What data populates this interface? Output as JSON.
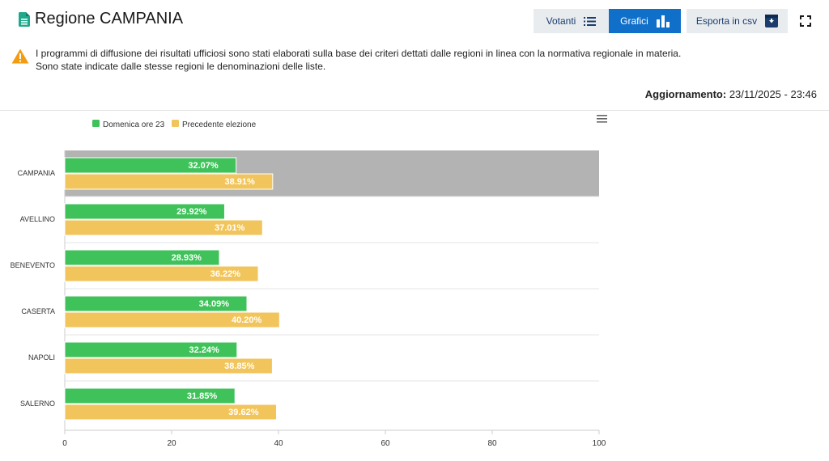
{
  "header": {
    "title": "Regione CAMPANIA",
    "buttons": {
      "votanti": "Votanti",
      "grafici": "Grafici",
      "csv": "Esporta in csv"
    },
    "notice_lines": [
      "I programmi di diffusione dei risultati ufficiosi sono stati elaborati sulla base dei criteri dettati dalle regioni in linea con la normativa regionale in materia.",
      "Sono state indicate dalle stesse regioni le denominazioni delle liste."
    ],
    "update_label": "Aggiornamento:",
    "update_value": "23/11/2025 - 23:46"
  },
  "colors": {
    "accent": "#0f6fc9",
    "series_current": "#3fc25a",
    "series_previous": "#f2c55c",
    "highlight_row": "#b3b3b3",
    "warning": "#f39c12",
    "title_icon": "#1fa98a"
  },
  "icons": {
    "title": "document-icon",
    "votanti": "list-icon",
    "grafici": "bar-chart-icon",
    "csv": "download-box-icon",
    "fullscreen": "fullscreen-icon",
    "menu": "hamburger-menu-icon",
    "warning": "warning-triangle-icon"
  },
  "chart_data": {
    "type": "bar",
    "orientation": "horizontal",
    "categories": [
      "CAMPANIA",
      "AVELLINO",
      "BENEVENTO",
      "CASERTA",
      "NAPOLI",
      "SALERNO"
    ],
    "series": [
      {
        "name": "Domenica ore 23",
        "values": [
          32.07,
          29.92,
          28.93,
          34.09,
          32.24,
          31.85
        ]
      },
      {
        "name": "Precedente elezione",
        "values": [
          38.91,
          37.01,
          36.22,
          40.2,
          38.85,
          39.62
        ]
      }
    ],
    "xlim": [
      0,
      100
    ],
    "xticks": [
      0,
      20,
      40,
      60,
      80,
      100
    ],
    "highlighted_category": "CAMPANIA",
    "legend_position": "top-left",
    "value_suffix": "%"
  }
}
